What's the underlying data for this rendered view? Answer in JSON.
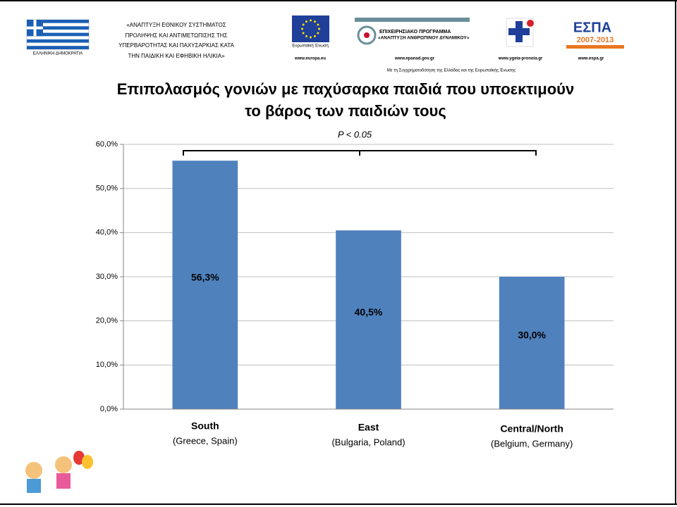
{
  "header": {
    "left_text": [
      "«ΑΝΑΠΤΥΞΗ ΕΘΝΙΚΟΥ ΣΥΣΤΗΜΑΤΟΣ",
      "ΠΡΟΛΗΨΗΣ ΚΑΙ ΑΝΤΙΜΕΤΩΠΙΣΗΣ ΤΗΣ",
      "ΥΠΕΡΒΑΡΟΤΗΤΑΣ ΚΑΙ ΠΑΧΥΣΑΡΚΙΑΣ ΚΑΤΑ",
      "ΤΗΝ ΠΑΙΔΙΚΗ ΚΑΙ ΕΦΗΒΙΚΗ ΗΛΙΚΙΑ»"
    ],
    "flag_caption": "ΕΛΛΗΝΙΚΗ ΔΗΜΟΚΡΑΤΙΑ",
    "eu_caption": "Ευρωπαϊκή Ένωση",
    "eu_url": "www.europa.eu",
    "program_title": "ΕΠΙΧΕΙΡΗΣΙΑΚΟ ΠΡΟΓΡΑΜΜΑ",
    "program_name": "«ΑΝΑΠΤΥΞΗ ΑΝΘΡΩΠΙΝΟΥ ΔΥΝΑΜΙΚΟΥ»",
    "program_url": "www.epanad.gov.gr",
    "ministry_url": "www.ygeia-pronoia.gr",
    "espa_title": "ΕΣΠΑ",
    "espa_years": "2007-2013",
    "espa_url": "www.espa.gr",
    "cofunding": "Με τη Συγχρηματοδότηση της Ελλάδας και της Ευρωπαϊκής Ένωσης"
  },
  "chart_data": {
    "type": "bar",
    "title": [
      "Επιπολασμός γονιών με παχύσαρκα παιδιά που υποεκτιμούν",
      "το βάρος των παιδιών τους"
    ],
    "annotation": "P < 0.05",
    "categories": [
      "South",
      "East",
      "Central/North"
    ],
    "category_sublabels": [
      "(Greece, Spain)",
      "(Bulgaria, Poland)",
      "(Belgium, Germany)"
    ],
    "values": [
      56.3,
      40.5,
      30.0
    ],
    "value_labels": [
      "56,3%",
      "40,5%",
      "30,0%"
    ],
    "color": "#4f81bd",
    "ylim": [
      0,
      60
    ],
    "yticks": [
      {
        "value": 0,
        "label": "0,0%"
      },
      {
        "value": 10,
        "label": "10,0%"
      },
      {
        "value": 20,
        "label": "20,0%"
      },
      {
        "value": 30,
        "label": "30,0%"
      },
      {
        "value": 40,
        "label": "40,0%"
      },
      {
        "value": 50,
        "label": "50,0%"
      },
      {
        "value": 60,
        "label": "60,0%"
      }
    ],
    "grid": true
  }
}
